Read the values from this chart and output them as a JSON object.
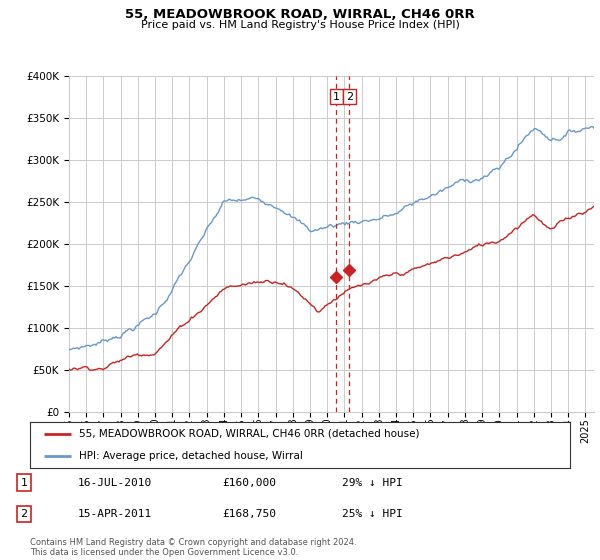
{
  "title": "55, MEADOWBROOK ROAD, WIRRAL, CH46 0RR",
  "subtitle": "Price paid vs. HM Land Registry's House Price Index (HPI)",
  "ylim": [
    0,
    400000
  ],
  "yticks": [
    0,
    50000,
    100000,
    150000,
    200000,
    250000,
    300000,
    350000,
    400000
  ],
  "ytick_labels": [
    "£0",
    "£50K",
    "£100K",
    "£150K",
    "£200K",
    "£250K",
    "£300K",
    "£350K",
    "£400K"
  ],
  "bg_color": "#ffffff",
  "grid_color": "#cccccc",
  "hpi_color": "#6699cc",
  "price_color": "#cc2222",
  "vline_color": "#cc2222",
  "transaction1": {
    "date_num": 2010.54,
    "price": 160000,
    "label": "1",
    "date_str": "16-JUL-2010",
    "price_str": "£160,000",
    "pct_str": "29% ↓ HPI"
  },
  "transaction2": {
    "date_num": 2011.29,
    "price": 168750,
    "label": "2",
    "date_str": "15-APR-2011",
    "price_str": "£168,750",
    "pct_str": "25% ↓ HPI"
  },
  "legend_label_red": "55, MEADOWBROOK ROAD, WIRRAL, CH46 0RR (detached house)",
  "legend_label_blue": "HPI: Average price, detached house, Wirral",
  "footer": "Contains HM Land Registry data © Crown copyright and database right 2024.\nThis data is licensed under the Open Government Licence v3.0.",
  "xmin": 1995,
  "xmax": 2025.5
}
